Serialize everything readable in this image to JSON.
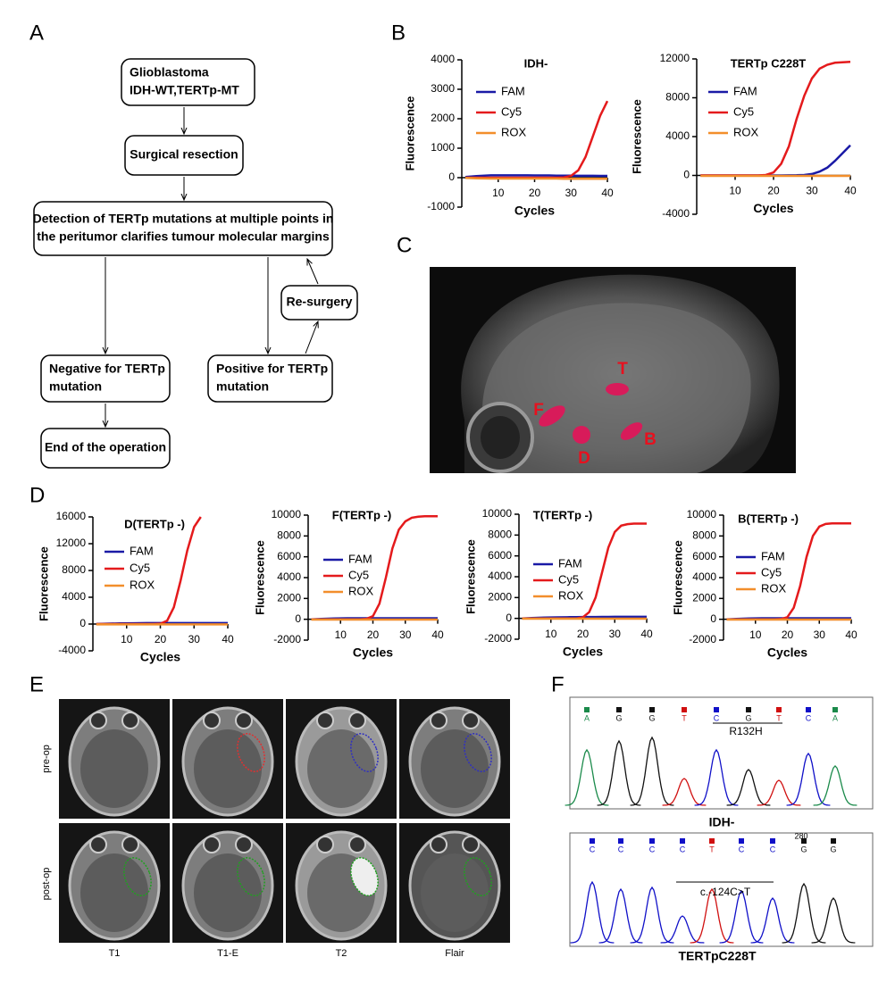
{
  "panel_labels": [
    "A",
    "B",
    "C",
    "D",
    "E",
    "F"
  ],
  "flowchart": {
    "nodes": [
      {
        "lines": [
          "Glioblastoma",
          "IDH-WT,TERTp-MT"
        ]
      },
      {
        "lines": [
          "Surgical resection"
        ]
      },
      {
        "lines": [
          "Detection of TERTp mutations at multiple points in",
          "the peritumor clarifies tumour molecular margins"
        ]
      },
      {
        "lines": [
          "Re-surgery"
        ]
      },
      {
        "lines": [
          "Negative for TERTp",
          "mutation"
        ]
      },
      {
        "lines": [
          "Positive for TERTp",
          "mutation"
        ]
      },
      {
        "lines": [
          "End of the operation"
        ]
      }
    ]
  },
  "chart_data": [
    {
      "type": "line",
      "title": "IDH-",
      "x_label": "Cycles",
      "y_label": "Fluorescence",
      "x": [
        1,
        4,
        8,
        12,
        16,
        18,
        20,
        22,
        24,
        26,
        28,
        30,
        32,
        34,
        36,
        38,
        40
      ],
      "xlim": [
        0,
        40
      ],
      "xticks": [
        10,
        20,
        30,
        40
      ],
      "ylim": [
        -1000,
        4000
      ],
      "yticks": [
        -1000,
        0,
        1000,
        2000,
        3000,
        4000
      ],
      "series": [
        {
          "name": "FAM",
          "color": "#1a1aa6",
          "values": [
            20,
            50,
            80,
            80,
            80,
            80,
            75,
            75,
            75,
            70,
            70,
            70,
            65,
            65,
            65,
            60,
            60
          ]
        },
        {
          "name": "Cy5",
          "color": "#e41a1c",
          "values": [
            0,
            0,
            0,
            0,
            0,
            0,
            0,
            0,
            0,
            0,
            10,
            60,
            250,
            700,
            1400,
            2100,
            2600
          ]
        },
        {
          "name": "ROX",
          "color": "#f28e2b",
          "values": [
            -10,
            -20,
            -30,
            -30,
            -30,
            -30,
            -30,
            -30,
            -30,
            -30,
            -40,
            -40,
            -40,
            -40,
            -40,
            -40,
            -40
          ]
        }
      ]
    },
    {
      "type": "line",
      "title": "TERTp C228T",
      "x_label": "Cycles",
      "y_label": "Fluorescence",
      "x": [
        1,
        4,
        8,
        12,
        16,
        18,
        20,
        22,
        24,
        26,
        28,
        30,
        32,
        34,
        36,
        38,
        40
      ],
      "xlim": [
        0,
        40
      ],
      "xticks": [
        10,
        20,
        30,
        40
      ],
      "ylim": [
        -4000,
        12000
      ],
      "yticks": [
        -4000,
        0,
        4000,
        8000,
        12000
      ],
      "series": [
        {
          "name": "FAM",
          "color": "#1a1aa6",
          "values": [
            0,
            0,
            0,
            0,
            0,
            0,
            0,
            0,
            10,
            20,
            50,
            150,
            400,
            800,
            1500,
            2300,
            3100
          ]
        },
        {
          "name": "Cy5",
          "color": "#e41a1c",
          "values": [
            0,
            0,
            0,
            0,
            0,
            50,
            300,
            1200,
            3000,
            5800,
            8200,
            10000,
            11000,
            11400,
            11600,
            11650,
            11700
          ]
        },
        {
          "name": "ROX",
          "color": "#f28e2b",
          "values": [
            -50,
            -50,
            -50,
            -50,
            -50,
            -50,
            -50,
            -50,
            -50,
            -50,
            -50,
            -50,
            -50,
            -50,
            -50,
            -50,
            -50
          ]
        }
      ]
    },
    {
      "type": "line",
      "title": "D(TERTp -)",
      "x_label": "Cycles",
      "y_label": "Fluorescence",
      "x": [
        1,
        4,
        8,
        12,
        16,
        18,
        20,
        22,
        24,
        26,
        28,
        30,
        32,
        34,
        36,
        38,
        40
      ],
      "xlim": [
        0,
        40
      ],
      "xticks": [
        10,
        20,
        30,
        40
      ],
      "ylim": [
        -4000,
        16000
      ],
      "yticks": [
        -4000,
        0,
        4000,
        8000,
        12000,
        16000
      ],
      "series": [
        {
          "name": "FAM",
          "color": "#1a1aa6",
          "values": [
            0,
            50,
            100,
            120,
            150,
            150,
            150,
            150,
            150,
            150,
            150,
            150,
            150,
            150,
            150,
            150,
            150
          ]
        },
        {
          "name": "Cy5",
          "color": "#e41a1c",
          "values": [
            0,
            0,
            0,
            0,
            0,
            0,
            50,
            500,
            2500,
            6500,
            11000,
            14500,
            16000,
            null,
            null,
            null,
            null
          ]
        },
        {
          "name": "ROX",
          "color": "#f28e2b",
          "values": [
            -50,
            -50,
            -50,
            -50,
            -50,
            -50,
            -50,
            -50,
            -50,
            -50,
            -50,
            -50,
            -50,
            -50,
            -50,
            -50,
            -50
          ]
        }
      ]
    },
    {
      "type": "line",
      "title": "F(TERTp -)",
      "x_label": "Cycles",
      "y_label": "Fluorescence",
      "x": [
        1,
        4,
        8,
        12,
        16,
        18,
        20,
        22,
        24,
        26,
        28,
        30,
        32,
        34,
        36,
        38,
        40
      ],
      "xlim": [
        0,
        40
      ],
      "xticks": [
        10,
        20,
        30,
        40
      ],
      "ylim": [
        -2000,
        10000
      ],
      "yticks": [
        -2000,
        0,
        2000,
        4000,
        6000,
        8000,
        10000
      ],
      "series": [
        {
          "name": "FAM",
          "color": "#1a1aa6",
          "values": [
            0,
            40,
            80,
            100,
            100,
            100,
            100,
            100,
            100,
            100,
            100,
            100,
            100,
            100,
            100,
            100,
            100
          ]
        },
        {
          "name": "Cy5",
          "color": "#e41a1c",
          "values": [
            0,
            0,
            0,
            0,
            0,
            50,
            300,
            1500,
            4000,
            6800,
            8600,
            9400,
            9750,
            9850,
            9900,
            9900,
            9900
          ]
        },
        {
          "name": "ROX",
          "color": "#f28e2b",
          "values": [
            -30,
            -30,
            -30,
            -30,
            -30,
            -30,
            -30,
            -30,
            -30,
            -30,
            -30,
            -30,
            -30,
            -30,
            -30,
            -30,
            -30
          ]
        }
      ]
    },
    {
      "type": "line",
      "title": "T(TERTp -)",
      "x_label": "Cycles",
      "y_label": "Fluorescence",
      "x": [
        1,
        4,
        8,
        12,
        16,
        18,
        20,
        22,
        24,
        26,
        28,
        30,
        32,
        34,
        36,
        38,
        40
      ],
      "xlim": [
        0,
        40
      ],
      "xticks": [
        10,
        20,
        30,
        40
      ],
      "ylim": [
        -2000,
        10000
      ],
      "yticks": [
        -2000,
        0,
        2000,
        4000,
        6000,
        8000,
        10000
      ],
      "series": [
        {
          "name": "FAM",
          "color": "#1a1aa6",
          "values": [
            0,
            40,
            80,
            100,
            120,
            120,
            130,
            130,
            130,
            140,
            140,
            150,
            150,
            150,
            150,
            150,
            150
          ]
        },
        {
          "name": "Cy5",
          "color": "#e41a1c",
          "values": [
            0,
            0,
            0,
            0,
            0,
            0,
            100,
            600,
            2000,
            4400,
            6800,
            8300,
            8900,
            9050,
            9100,
            9100,
            9100
          ]
        },
        {
          "name": "ROX",
          "color": "#f28e2b",
          "values": [
            -30,
            -30,
            -30,
            -30,
            -30,
            -30,
            -30,
            -30,
            -30,
            -30,
            -30,
            -30,
            -30,
            -30,
            -30,
            -30,
            -30
          ]
        }
      ]
    },
    {
      "type": "line",
      "title": "B(TERTp -)",
      "x_label": "Cycles",
      "y_label": "Fluorescence",
      "x": [
        1,
        4,
        8,
        12,
        16,
        18,
        20,
        22,
        24,
        26,
        28,
        30,
        32,
        34,
        36,
        38,
        40
      ],
      "xlim": [
        0,
        40
      ],
      "xticks": [
        10,
        20,
        30,
        40
      ],
      "ylim": [
        -2000,
        10000
      ],
      "yticks": [
        -2000,
        0,
        2000,
        4000,
        6000,
        8000,
        10000
      ],
      "series": [
        {
          "name": "FAM",
          "color": "#1a1aa6",
          "values": [
            0,
            40,
            80,
            100,
            100,
            100,
            100,
            100,
            100,
            100,
            100,
            100,
            100,
            100,
            100,
            100,
            100
          ]
        },
        {
          "name": "Cy5",
          "color": "#e41a1c",
          "values": [
            0,
            0,
            0,
            0,
            0,
            20,
            200,
            1100,
            3200,
            6000,
            8000,
            8900,
            9150,
            9200,
            9200,
            9200,
            9200
          ]
        },
        {
          "name": "ROX",
          "color": "#f28e2b",
          "values": [
            -30,
            -30,
            -30,
            -30,
            -30,
            -30,
            -30,
            -30,
            -30,
            -30,
            -30,
            -30,
            -30,
            -30,
            -30,
            -30,
            -30
          ]
        }
      ]
    }
  ],
  "mri": {
    "markers": [
      "T",
      "F",
      "D",
      "B"
    ]
  },
  "mri_grid": {
    "rows": [
      "pre-op",
      "post-op"
    ],
    "columns": [
      "T1",
      "T1-E",
      "T2",
      "Flair"
    ]
  },
  "sequencing": [
    {
      "bases": [
        "A",
        "G",
        "G",
        "T",
        "C",
        "G",
        "T",
        "C",
        "A"
      ],
      "region": "R132H",
      "title": "IDH-"
    },
    {
      "bases": [
        "C",
        "C",
        "C",
        "C",
        "T",
        "C",
        "C",
        "G",
        "G"
      ],
      "position": "280",
      "region": "c.-124C>T",
      "title": "TERTpC228T"
    }
  ]
}
